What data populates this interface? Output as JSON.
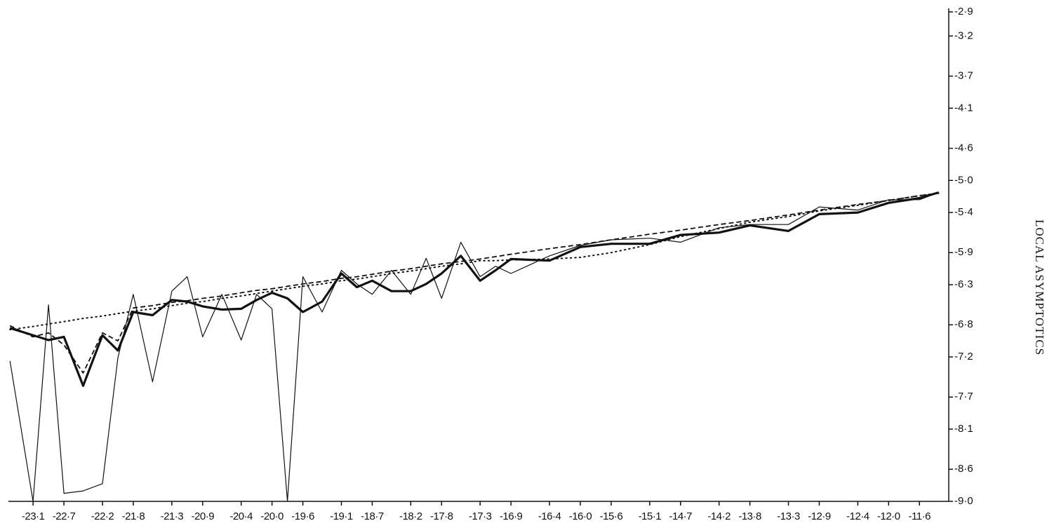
{
  "chart_data": {
    "type": "line",
    "y_label": "LOCAL ASYMPTOTICS",
    "y_axis_side": "right",
    "color": "#111111",
    "xlim": [
      -23.42,
      -11.22
    ],
    "ylim": [
      -9.0,
      -2.9
    ],
    "xticks": [
      {
        "value": -23.1,
        "label": "-23·1"
      },
      {
        "value": -22.7,
        "label": "-22·7"
      },
      {
        "value": -22.2,
        "label": "-22·2"
      },
      {
        "value": -21.8,
        "label": "-21·8"
      },
      {
        "value": -21.3,
        "label": "-21·3"
      },
      {
        "value": -20.9,
        "label": "-20·9"
      },
      {
        "value": -20.4,
        "label": "-20·4"
      },
      {
        "value": -20.0,
        "label": "-20·0"
      },
      {
        "value": -19.6,
        "label": "-19·6"
      },
      {
        "value": -19.1,
        "label": "-19·1"
      },
      {
        "value": -18.7,
        "label": "-18·7"
      },
      {
        "value": -18.2,
        "label": "-18·2"
      },
      {
        "value": -17.8,
        "label": "-17·8"
      },
      {
        "value": -17.3,
        "label": "-17·3"
      },
      {
        "value": -16.9,
        "label": "-16·9"
      },
      {
        "value": -16.4,
        "label": "-16·4"
      },
      {
        "value": -16.0,
        "label": "-16·0"
      },
      {
        "value": -15.6,
        "label": "-15·6"
      },
      {
        "value": -15.1,
        "label": "-15·1"
      },
      {
        "value": -14.7,
        "label": "-14·7"
      },
      {
        "value": -14.2,
        "label": "-14·2"
      },
      {
        "value": -13.8,
        "label": "-13·8"
      },
      {
        "value": -13.3,
        "label": "-13·3"
      },
      {
        "value": -12.9,
        "label": "-12·9"
      },
      {
        "value": -12.4,
        "label": "-12·4"
      },
      {
        "value": -12.0,
        "label": "-12·0"
      },
      {
        "value": -11.6,
        "label": "-11·6"
      }
    ],
    "yticks": [
      {
        "value": -2.9,
        "label": "-2·9"
      },
      {
        "value": -3.2,
        "label": "-3·2"
      },
      {
        "value": -3.7,
        "label": "-3·7"
      },
      {
        "value": -4.1,
        "label": "-4·1"
      },
      {
        "value": -4.6,
        "label": "-4·6"
      },
      {
        "value": -5.0,
        "label": "-5·0"
      },
      {
        "value": -5.4,
        "label": "-5·4"
      },
      {
        "value": -5.9,
        "label": "-5·9"
      },
      {
        "value": -6.3,
        "label": "-6·3"
      },
      {
        "value": -6.8,
        "label": "-6·8"
      },
      {
        "value": -7.2,
        "label": "-7·2"
      },
      {
        "value": -7.7,
        "label": "-7·7"
      },
      {
        "value": -8.1,
        "label": "-8·1"
      },
      {
        "value": -8.6,
        "label": "-8·6"
      },
      {
        "value": -9.0,
        "label": "-9·0"
      }
    ],
    "x": [
      -23.4,
      -23.1,
      -22.9,
      -22.7,
      -22.45,
      -22.2,
      -22.0,
      -21.8,
      -21.55,
      -21.3,
      -21.1,
      -20.9,
      -20.65,
      -20.4,
      -20.2,
      -20.0,
      -19.8,
      -19.6,
      -19.35,
      -19.1,
      -18.9,
      -18.7,
      -18.45,
      -18.2,
      -18.0,
      -17.8,
      -17.55,
      -17.3,
      -17.1,
      -16.9,
      -16.4,
      -16.0,
      -15.6,
      -15.1,
      -14.7,
      -14.2,
      -13.8,
      -13.3,
      -12.9,
      -12.4,
      -12.0,
      -11.6,
      -11.35
    ],
    "series": [
      {
        "style": "thin",
        "color": "#111111",
        "values": [
          -7.25,
          -9.0,
          -6.55,
          -8.9,
          -8.87,
          -8.78,
          -7.21,
          -6.42,
          -7.51,
          -6.38,
          -6.2,
          -6.95,
          -6.42,
          -6.99,
          -6.42,
          -6.6,
          -9.0,
          -6.2,
          -6.64,
          -6.12,
          -6.29,
          -6.42,
          -6.12,
          -6.42,
          -5.97,
          -6.47,
          -5.77,
          -6.2,
          -6.07,
          -6.16,
          -5.94,
          -5.81,
          -5.74,
          -5.72,
          -5.77,
          -5.59,
          -5.55,
          -5.55,
          -5.33,
          -5.37,
          -5.24,
          -5.24,
          -5.15
        ]
      },
      {
        "style": "dashed",
        "color": "#111111",
        "values": [
          -6.81,
          -6.95,
          -6.9,
          -7.05,
          -7.4,
          -6.9,
          -7.0,
          -6.59,
          -6.56,
          -6.52,
          -6.5,
          -6.47,
          -6.44,
          -6.4,
          -6.37,
          -6.35,
          -6.32,
          -6.29,
          -6.26,
          -6.22,
          -6.2,
          -6.17,
          -6.13,
          -6.1,
          -6.07,
          -6.04,
          -6.01,
          -5.98,
          -5.95,
          -5.92,
          -5.85,
          -5.8,
          -5.74,
          -5.67,
          -5.62,
          -5.55,
          -5.5,
          -5.43,
          -5.37,
          -5.3,
          -5.25,
          -5.19,
          -5.16
        ]
      },
      {
        "style": "dotted",
        "color": "#111111",
        "values": [
          -6.86,
          -6.82,
          -6.79,
          -6.76,
          -6.72,
          -6.69,
          -6.66,
          -6.63,
          -6.6,
          -6.56,
          -6.53,
          -6.51,
          -6.47,
          -6.44,
          -6.41,
          -6.38,
          -6.35,
          -6.32,
          -6.29,
          -6.25,
          -6.23,
          -6.2,
          -6.16,
          -6.13,
          -6.1,
          -6.07,
          -6.04,
          -6.0,
          -6.0,
          -5.99,
          -5.98,
          -5.96,
          -5.9,
          -5.8,
          -5.7,
          -5.6,
          -5.52,
          -5.45,
          -5.38,
          -5.31,
          -5.25,
          -5.19,
          -5.16
        ]
      },
      {
        "style": "thick",
        "color": "#111111",
        "values": [
          -6.84,
          -6.93,
          -6.99,
          -6.95,
          -7.56,
          -6.93,
          -7.12,
          -6.64,
          -6.68,
          -6.49,
          -6.51,
          -6.57,
          -6.61,
          -6.6,
          -6.49,
          -6.4,
          -6.47,
          -6.64,
          -6.51,
          -6.16,
          -6.33,
          -6.25,
          -6.38,
          -6.38,
          -6.29,
          -6.16,
          -5.94,
          -6.25,
          -6.12,
          -5.98,
          -6.0,
          -5.83,
          -5.79,
          -5.79,
          -5.68,
          -5.65,
          -5.56,
          -5.63,
          -5.42,
          -5.4,
          -5.28,
          -5.22,
          -5.15
        ]
      }
    ]
  }
}
